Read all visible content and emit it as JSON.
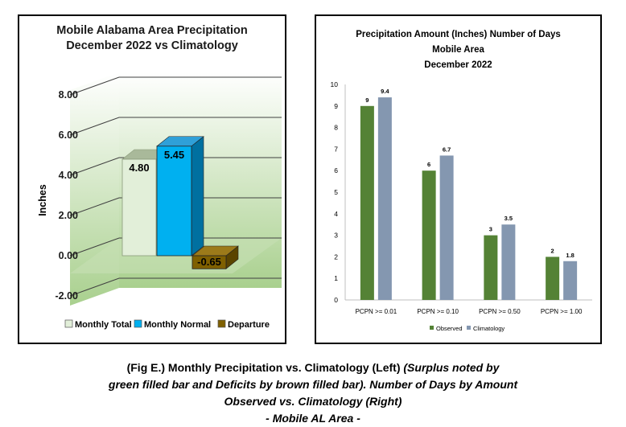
{
  "chart_data": [
    {
      "type": "bar",
      "title_lines": [
        "Mobile Alabama Area Precipitation",
        "December 2022 vs Climatology"
      ],
      "ylabel": "Inches",
      "ylim": [
        -2,
        8
      ],
      "y_ticks": [
        "8.00",
        "6.00",
        "4.00",
        "2.00",
        "0.00",
        "-2.00"
      ],
      "y_tick_values": [
        8,
        6,
        4,
        2,
        0,
        -2
      ],
      "categories": [
        "Monthly Total",
        "Monthly Normal",
        "Departure"
      ],
      "values": [
        4.8,
        5.45,
        -0.65
      ],
      "value_labels": [
        "4.80",
        "5.45",
        "-0.65"
      ],
      "colors": [
        "#e2efd9",
        "#00b0f0",
        "#7f6000"
      ],
      "legend": [
        "Monthly Total",
        "Monthly Normal",
        "Departure"
      ],
      "legend_position": "bottom",
      "grid": true,
      "style": "3d-column"
    },
    {
      "type": "bar",
      "title_lines": [
        "Precipitation Amount (Inches) Number of Days",
        "Mobile Area",
        "December 2022"
      ],
      "ylim": [
        0,
        10
      ],
      "y_ticks": [
        "10",
        "9",
        "8",
        "7",
        "6",
        "5",
        "4",
        "3",
        "2",
        "1",
        "0"
      ],
      "y_tick_values": [
        10,
        9,
        8,
        7,
        6,
        5,
        4,
        3,
        2,
        1,
        0
      ],
      "categories": [
        "PCPN >= 0.01",
        "PCPN >= 0.10",
        "PCPN >= 0.50",
        "PCPN >= 1.00"
      ],
      "series": [
        {
          "name": "Observed",
          "values": [
            9,
            6,
            3,
            2
          ],
          "labels": [
            "9",
            "6",
            "3",
            "2"
          ],
          "color": "#548235"
        },
        {
          "name": "Climatology",
          "values": [
            9.4,
            6.7,
            3.5,
            1.8
          ],
          "labels": [
            "9.4",
            "6.7",
            "3.5",
            "1.8"
          ],
          "color": "#8497b0"
        }
      ],
      "legend_position": "bottom",
      "grid": false
    }
  ],
  "caption": {
    "line1_normal": "(Fig E.) Monthly Precipitation vs. Climatology (Left) ",
    "line1_italic": "(Surplus noted by",
    "line2": "green filled bar and Deficits by brown filled bar). Number of Days by Amount",
    "line3": "Observed vs. Climatology (Right)",
    "line4": "- Mobile AL Area -"
  }
}
